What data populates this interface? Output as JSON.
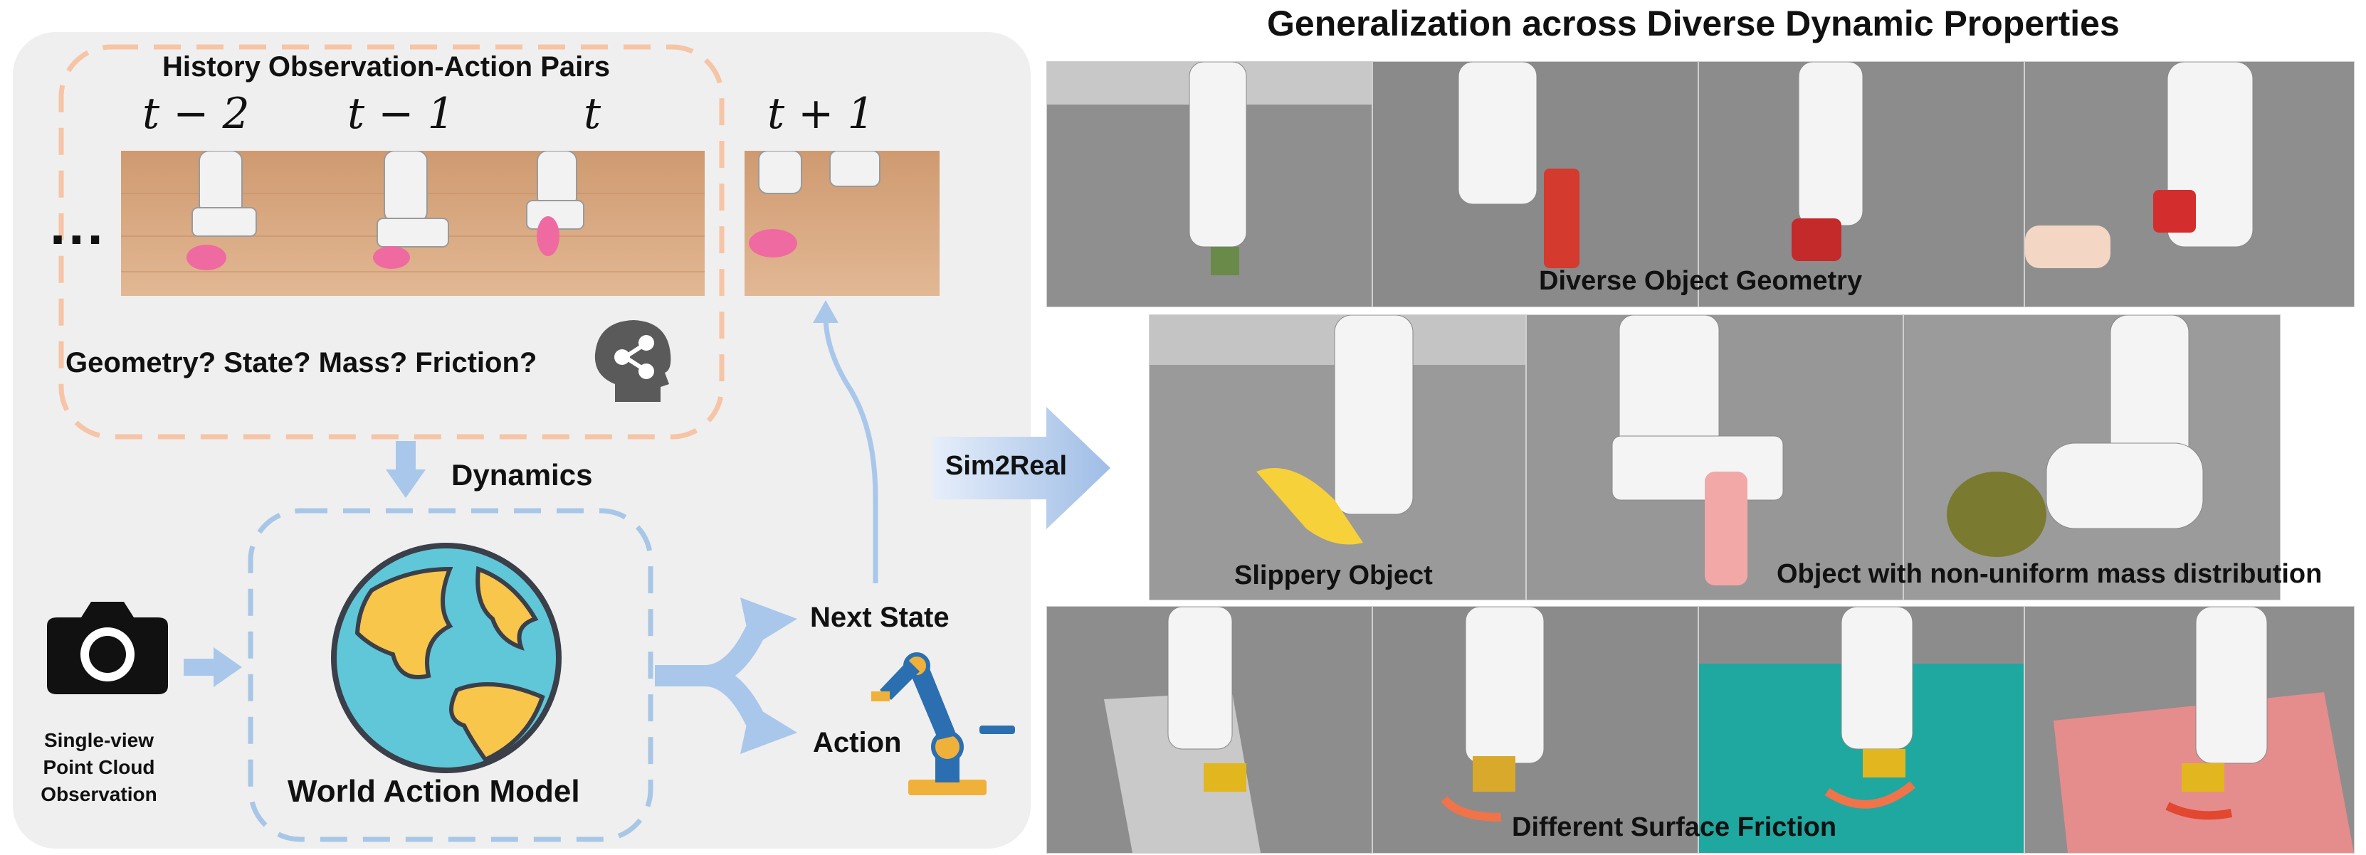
{
  "left": {
    "history_title": "History Observation-Action Pairs",
    "time_labels": [
      "t − 2",
      "t − 1",
      "t"
    ],
    "future_label": "t + 1",
    "ellipsis": "...",
    "question": "Geometry? State? Mass? Friction?",
    "dynamics_label": "Dynamics",
    "model_label": "World Action Model",
    "camera_caption_lines": [
      "Single-view",
      "Point Cloud",
      "Observation"
    ],
    "next_state_label": "Next State",
    "action_label": "Action"
  },
  "transfer_label": "Sim2Real",
  "right": {
    "title": "Generalization across Diverse Dynamic Properties",
    "row1_label": "Diverse Object Geometry",
    "row2_labels": [
      "Slippery  Object",
      "Object with non-uniform mass distribution"
    ],
    "row3_label": "Different  Surface Friction"
  },
  "colors": {
    "panel_bg": "#efefef",
    "orange_dash": "#f6c4a6",
    "blue_dash": "#a8c6e6",
    "arrow_blue": "#a9c7ea",
    "earth_ocean": "#5fc7d8",
    "earth_land": "#f8c64a",
    "table_wood": "#d9a57a",
    "table_gray": "#8d8d8d"
  },
  "icons": [
    "camera-icon",
    "globe-icon",
    "head-network-icon",
    "robot-arm-icon"
  ]
}
